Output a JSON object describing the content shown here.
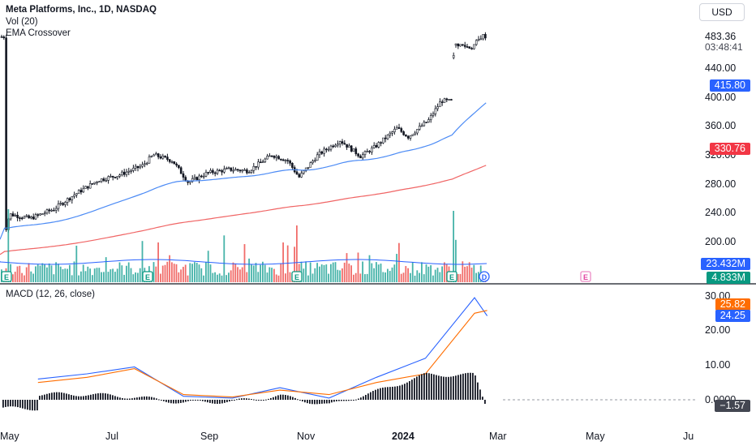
{
  "header": {
    "symbol_line": "Meta Platforms, Inc., 1D, NASDAQ",
    "indicator_vol": "Vol (20)",
    "indicator_ema": "EMA Crossover",
    "currency": "USD"
  },
  "macd_header": "MACD (12, 26, close)",
  "price_axis_ticks": [
    "440.00",
    "400.00",
    "360.00",
    "320.00",
    "280.00",
    "240.00",
    "200.00"
  ],
  "price_axis_tick_values": [
    440,
    400,
    360,
    320,
    280,
    240,
    200
  ],
  "price_last": "483.36",
  "price_countdown": "03:48:41",
  "badges": {
    "ema_fast": "415.80",
    "ema_slow": "330.76",
    "vol_avg": "23.432M",
    "vol_last": "4.833M",
    "macd_signal": "25.82",
    "macd_line": "24.25",
    "macd_hist": "−1.57"
  },
  "macd_axis_ticks": [
    "30.00",
    "20.00",
    "10.00",
    "0.0000"
  ],
  "time_axis": [
    "May",
    "Jul",
    "Sep",
    "Nov",
    "2024",
    "Mar",
    "May",
    "Ju"
  ],
  "event_markers": [
    "E",
    "E",
    "E",
    "E",
    "D",
    "E"
  ],
  "colors": {
    "up": "#26a69a",
    "down": "#ef5350",
    "candle": "#131722",
    "ema_fast": "#4c8bf5",
    "ema_slow": "#f06565",
    "macd_line": "#2962ff",
    "signal_line": "#ff6d00",
    "badge_blue": "#2962ff",
    "badge_red": "#f23645",
    "badge_green": "#089981",
    "badge_orange": "#ff6d00",
    "badge_dark": "#434651"
  },
  "chart_data": [
    {
      "type": "candlestick",
      "title": "Meta Platforms, Inc., 1D, NASDAQ",
      "x_range": [
        "2023-04",
        "2024-02"
      ],
      "y_range": [
        200,
        490
      ],
      "close_points": [
        [
          "2023-04-24",
          211
        ],
        [
          "2023-04-27",
          238
        ],
        [
          "2023-05-10",
          232
        ],
        [
          "2023-05-25",
          245
        ],
        [
          "2023-06-07",
          265
        ],
        [
          "2023-06-22",
          285
        ],
        [
          "2023-07-05",
          292
        ],
        [
          "2023-07-20",
          305
        ],
        [
          "2023-07-27",
          320
        ],
        [
          "2023-08-08",
          312
        ],
        [
          "2023-08-18",
          282
        ],
        [
          "2023-08-30",
          295
        ],
        [
          "2023-09-13",
          300
        ],
        [
          "2023-09-25",
          298
        ],
        [
          "2023-10-10",
          320
        ],
        [
          "2023-10-20",
          312
        ],
        [
          "2023-10-27",
          289
        ],
        [
          "2023-11-08",
          320
        ],
        [
          "2023-11-22",
          340
        ],
        [
          "2023-12-05",
          318
        ],
        [
          "2023-12-14",
          331
        ],
        [
          "2023-12-28",
          357
        ],
        [
          "2024-01-04",
          345
        ],
        [
          "2024-01-17",
          368
        ],
        [
          "2024-01-25",
          395
        ],
        [
          "2024-02-01",
          394
        ],
        [
          "2024-02-02",
          474
        ],
        [
          "2024-02-13",
          468
        ],
        [
          "2024-02-20",
          485
        ],
        [
          "2024-02-23",
          483.36
        ]
      ],
      "last_price": 483.36,
      "ema_fast_last": 415.8,
      "ema_slow_last": 330.76
    },
    {
      "type": "bar",
      "title": "Vol (20)",
      "note": "volume histogram with 20-period average",
      "avg_last": "23.432M",
      "last": "4.833M",
      "spikes": [
        [
          "2023-04-27",
          "very high"
        ],
        [
          "2023-10-26",
          "high"
        ],
        [
          "2024-02-02",
          "very high"
        ]
      ]
    },
    {
      "type": "line",
      "title": "MACD (12, 26, close)",
      "y_range": [
        -5,
        32
      ],
      "series": [
        {
          "name": "MACD",
          "last": 24.25,
          "points": [
            [
              "2023-05",
              6
            ],
            [
              "2023-06",
              7.5
            ],
            [
              "2023-07",
              9.5
            ],
            [
              "2023-08",
              1
            ],
            [
              "2023-09",
              0.5
            ],
            [
              "2023-10",
              3.5
            ],
            [
              "2023-11",
              0.5
            ],
            [
              "2023-12",
              6.5
            ],
            [
              "2024-01",
              12
            ],
            [
              "2024-02",
              29.5
            ],
            [
              "2024-02-23",
              24.25
            ]
          ]
        },
        {
          "name": "Signal",
          "last": 25.82,
          "points": [
            [
              "2023-05",
              5
            ],
            [
              "2023-06",
              6.5
            ],
            [
              "2023-07",
              9
            ],
            [
              "2023-08",
              1.5
            ],
            [
              "2023-09",
              0.8
            ],
            [
              "2023-10",
              2.8
            ],
            [
              "2023-11",
              1.5
            ],
            [
              "2023-12",
              5
            ],
            [
              "2024-01",
              7.5
            ],
            [
              "2024-02",
              25
            ],
            [
              "2024-02-23",
              25.82
            ]
          ]
        },
        {
          "name": "Histogram",
          "last": -1.57
        }
      ]
    }
  ]
}
